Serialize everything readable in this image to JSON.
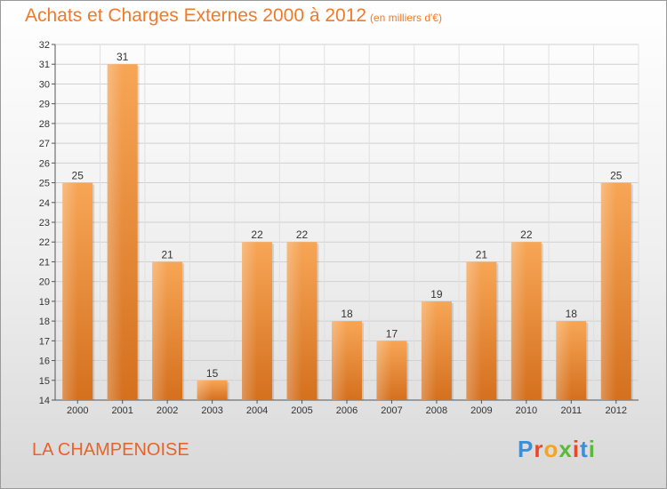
{
  "header": {
    "title": "Achats et Charges Externes 2000 à 2012",
    "subtitle": "(en milliers d'€)"
  },
  "footer": {
    "place": "LA CHAMPENOISE",
    "logo_text": "Proxiti"
  },
  "colors": {
    "bar_light": "#f7a656",
    "bar_dark": "#d4701e",
    "title": "#f07a2a"
  },
  "chart_data": {
    "type": "bar",
    "title": "Achats et Charges Externes 2000 à 2012",
    "subtitle": "(en milliers d'€)",
    "categories": [
      "2000",
      "2001",
      "2002",
      "2003",
      "2004",
      "2005",
      "2006",
      "2007",
      "2008",
      "2009",
      "2010",
      "2011",
      "2012"
    ],
    "values": [
      25,
      31,
      21,
      15,
      22,
      22,
      18,
      17,
      19,
      21,
      22,
      18,
      25
    ],
    "ylim": [
      14,
      32
    ],
    "yticks": [
      14,
      15,
      16,
      17,
      18,
      19,
      20,
      21,
      22,
      23,
      24,
      25,
      26,
      27,
      28,
      29,
      30,
      31,
      32
    ],
    "grid": true,
    "data_labels": true
  }
}
